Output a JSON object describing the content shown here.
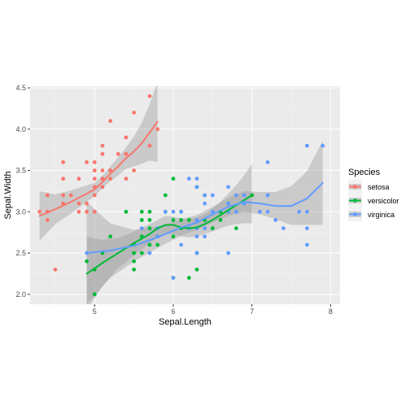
{
  "chart_data": {
    "type": "scatter",
    "xlabel": "Sepal.Length",
    "ylabel": "Sepal.Width",
    "xlim": [
      4.18,
      8.12
    ],
    "ylim": [
      1.88,
      4.52
    ],
    "x_ticks": [
      "5",
      "6",
      "7",
      "8"
    ],
    "y_ticks": [
      "2.0",
      "2.5",
      "3.0",
      "3.5",
      "4.0",
      "4.5"
    ],
    "grid": true,
    "legend": {
      "title": "Species",
      "position": "right"
    },
    "smoother": "loess with confidence band",
    "series": [
      {
        "name": "setosa",
        "color": "#F8766D",
        "points": [
          [
            4.3,
            3.0
          ],
          [
            4.4,
            2.9
          ],
          [
            4.4,
            3.0
          ],
          [
            4.4,
            3.2
          ],
          [
            4.5,
            2.3
          ],
          [
            4.6,
            3.1
          ],
          [
            4.6,
            3.2
          ],
          [
            4.6,
            3.4
          ],
          [
            4.6,
            3.6
          ],
          [
            4.7,
            3.2
          ],
          [
            4.8,
            3.0
          ],
          [
            4.8,
            3.1
          ],
          [
            4.8,
            3.4
          ],
          [
            4.9,
            3.0
          ],
          [
            4.9,
            3.1
          ],
          [
            4.9,
            3.6
          ],
          [
            5.0,
            3.0
          ],
          [
            5.0,
            3.2
          ],
          [
            5.0,
            3.3
          ],
          [
            5.0,
            3.4
          ],
          [
            5.0,
            3.5
          ],
          [
            5.0,
            3.6
          ],
          [
            5.1,
            3.3
          ],
          [
            5.1,
            3.4
          ],
          [
            5.1,
            3.5
          ],
          [
            5.1,
            3.7
          ],
          [
            5.1,
            3.8
          ],
          [
            5.2,
            3.4
          ],
          [
            5.2,
            3.5
          ],
          [
            5.2,
            4.1
          ],
          [
            5.3,
            3.7
          ],
          [
            5.4,
            3.4
          ],
          [
            5.4,
            3.7
          ],
          [
            5.4,
            3.9
          ],
          [
            5.5,
            3.5
          ],
          [
            5.5,
            4.2
          ],
          [
            5.7,
            3.8
          ],
          [
            5.7,
            4.4
          ],
          [
            5.8,
            4.0
          ]
        ],
        "fit": [
          [
            4.3,
            2.95
          ],
          [
            4.5,
            3.03
          ],
          [
            4.7,
            3.12
          ],
          [
            4.9,
            3.22
          ],
          [
            5.0,
            3.27
          ],
          [
            5.1,
            3.36
          ],
          [
            5.2,
            3.46
          ],
          [
            5.3,
            3.55
          ],
          [
            5.4,
            3.65
          ],
          [
            5.5,
            3.73
          ],
          [
            5.6,
            3.83
          ],
          [
            5.7,
            3.96
          ],
          [
            5.8,
            4.09
          ]
        ],
        "band": [
          [
            4.3,
            2.65,
            3.25
          ],
          [
            4.5,
            2.85,
            3.21
          ],
          [
            4.7,
            2.98,
            3.26
          ],
          [
            4.9,
            3.12,
            3.32
          ],
          [
            5.0,
            3.19,
            3.35
          ],
          [
            5.1,
            3.28,
            3.44
          ],
          [
            5.2,
            3.37,
            3.55
          ],
          [
            5.3,
            3.44,
            3.66
          ],
          [
            5.4,
            3.52,
            3.78
          ],
          [
            5.5,
            3.55,
            3.91
          ],
          [
            5.6,
            3.58,
            4.08
          ],
          [
            5.7,
            3.62,
            4.3
          ],
          [
            5.8,
            3.6,
            4.58
          ]
        ]
      },
      {
        "name": "versicolor",
        "color": "#00BA38",
        "points": [
          [
            4.9,
            2.4
          ],
          [
            5.0,
            2.0
          ],
          [
            5.0,
            2.3
          ],
          [
            5.1,
            2.5
          ],
          [
            5.2,
            2.7
          ],
          [
            5.4,
            3.0
          ],
          [
            5.5,
            2.3
          ],
          [
            5.5,
            2.4
          ],
          [
            5.5,
            2.5
          ],
          [
            5.5,
            2.6
          ],
          [
            5.6,
            2.5
          ],
          [
            5.6,
            2.7
          ],
          [
            5.6,
            2.9
          ],
          [
            5.6,
            3.0
          ],
          [
            5.7,
            2.6
          ],
          [
            5.7,
            2.8
          ],
          [
            5.7,
            2.9
          ],
          [
            5.7,
            3.0
          ],
          [
            5.8,
            2.6
          ],
          [
            5.8,
            2.7
          ],
          [
            5.9,
            3.0
          ],
          [
            5.9,
            3.2
          ],
          [
            6.0,
            2.2
          ],
          [
            6.0,
            2.7
          ],
          [
            6.0,
            2.9
          ],
          [
            6.0,
            3.4
          ],
          [
            6.1,
            2.8
          ],
          [
            6.1,
            2.9
          ],
          [
            6.1,
            3.0
          ],
          [
            6.2,
            2.2
          ],
          [
            6.2,
            2.9
          ],
          [
            6.3,
            2.3
          ],
          [
            6.3,
            2.5
          ],
          [
            6.3,
            3.3
          ],
          [
            6.4,
            2.9
          ],
          [
            6.4,
            3.2
          ],
          [
            6.5,
            2.8
          ],
          [
            6.6,
            2.9
          ],
          [
            6.6,
            3.0
          ],
          [
            6.7,
            3.0
          ],
          [
            6.7,
            3.1
          ],
          [
            6.8,
            2.8
          ],
          [
            6.9,
            3.1
          ],
          [
            7.0,
            3.2
          ]
        ],
        "fit": [
          [
            4.9,
            2.25
          ],
          [
            5.1,
            2.38
          ],
          [
            5.3,
            2.5
          ],
          [
            5.5,
            2.62
          ],
          [
            5.7,
            2.73
          ],
          [
            5.8,
            2.8
          ],
          [
            5.9,
            2.84
          ],
          [
            6.0,
            2.84
          ],
          [
            6.1,
            2.81
          ],
          [
            6.2,
            2.8
          ],
          [
            6.3,
            2.81
          ],
          [
            6.4,
            2.85
          ],
          [
            6.5,
            2.9
          ],
          [
            6.6,
            2.96
          ],
          [
            6.7,
            3.02
          ],
          [
            6.8,
            3.08
          ],
          [
            6.9,
            3.14
          ],
          [
            7.0,
            3.2
          ]
        ],
        "band": [
          [
            4.9,
            1.8,
            2.7
          ],
          [
            5.1,
            2.1,
            2.66
          ],
          [
            5.3,
            2.32,
            2.68
          ],
          [
            5.5,
            2.47,
            2.76
          ],
          [
            5.7,
            2.62,
            2.85
          ],
          [
            5.8,
            2.69,
            2.9
          ],
          [
            5.9,
            2.73,
            2.95
          ],
          [
            6.0,
            2.73,
            2.94
          ],
          [
            6.1,
            2.7,
            2.92
          ],
          [
            6.2,
            2.69,
            2.91
          ],
          [
            6.3,
            2.7,
            2.93
          ],
          [
            6.4,
            2.73,
            2.97
          ],
          [
            6.5,
            2.76,
            3.04
          ],
          [
            6.6,
            2.8,
            3.12
          ],
          [
            6.7,
            2.83,
            3.22
          ],
          [
            6.8,
            2.85,
            3.32
          ],
          [
            6.9,
            2.86,
            3.44
          ],
          [
            7.0,
            2.86,
            3.58
          ]
        ]
      },
      {
        "name": "virginica",
        "color": "#619CFF",
        "points": [
          [
            4.9,
            2.5
          ],
          [
            5.6,
            2.8
          ],
          [
            5.7,
            2.5
          ],
          [
            5.8,
            2.7
          ],
          [
            5.8,
            2.8
          ],
          [
            5.9,
            3.0
          ],
          [
            6.0,
            2.2
          ],
          [
            6.0,
            3.0
          ],
          [
            6.1,
            2.6
          ],
          [
            6.1,
            3.0
          ],
          [
            6.2,
            2.8
          ],
          [
            6.2,
            3.4
          ],
          [
            6.3,
            2.5
          ],
          [
            6.3,
            2.7
          ],
          [
            6.3,
            2.8
          ],
          [
            6.3,
            2.9
          ],
          [
            6.3,
            3.3
          ],
          [
            6.3,
            3.4
          ],
          [
            6.4,
            2.7
          ],
          [
            6.4,
            2.8
          ],
          [
            6.4,
            3.1
          ],
          [
            6.4,
            3.2
          ],
          [
            6.5,
            3.0
          ],
          [
            6.5,
            3.2
          ],
          [
            6.7,
            2.5
          ],
          [
            6.7,
            3.0
          ],
          [
            6.7,
            3.1
          ],
          [
            6.7,
            3.3
          ],
          [
            6.8,
            3.0
          ],
          [
            6.8,
            3.2
          ],
          [
            6.9,
            3.1
          ],
          [
            6.9,
            3.2
          ],
          [
            7.1,
            3.0
          ],
          [
            7.2,
            3.0
          ],
          [
            7.2,
            3.2
          ],
          [
            7.2,
            3.6
          ],
          [
            7.3,
            2.9
          ],
          [
            7.4,
            2.8
          ],
          [
            7.6,
            3.0
          ],
          [
            7.7,
            2.6
          ],
          [
            7.7,
            2.8
          ],
          [
            7.7,
            3.0
          ],
          [
            7.7,
            3.8
          ],
          [
            7.9,
            3.8
          ]
        ],
        "fit": [
          [
            4.9,
            2.5
          ],
          [
            5.2,
            2.53
          ],
          [
            5.5,
            2.59
          ],
          [
            5.8,
            2.69
          ],
          [
            6.1,
            2.81
          ],
          [
            6.3,
            2.87
          ],
          [
            6.5,
            2.97
          ],
          [
            6.7,
            3.06
          ],
          [
            6.9,
            3.12
          ],
          [
            7.1,
            3.1
          ],
          [
            7.3,
            3.07
          ],
          [
            7.5,
            3.07
          ],
          [
            7.7,
            3.16
          ],
          [
            7.9,
            3.35
          ]
        ],
        "band": [
          [
            4.9,
            1.88,
            3.12
          ],
          [
            5.2,
            2.2,
            2.86
          ],
          [
            5.5,
            2.4,
            2.78
          ],
          [
            5.8,
            2.56,
            2.82
          ],
          [
            6.1,
            2.71,
            2.91
          ],
          [
            6.3,
            2.78,
            2.96
          ],
          [
            6.5,
            2.87,
            3.06
          ],
          [
            6.7,
            2.95,
            3.17
          ],
          [
            6.9,
            3.0,
            3.25
          ],
          [
            7.1,
            2.97,
            3.24
          ],
          [
            7.3,
            2.91,
            3.24
          ],
          [
            7.5,
            2.84,
            3.31
          ],
          [
            7.7,
            2.84,
            3.49
          ],
          [
            7.9,
            2.84,
            3.86
          ]
        ]
      }
    ]
  }
}
